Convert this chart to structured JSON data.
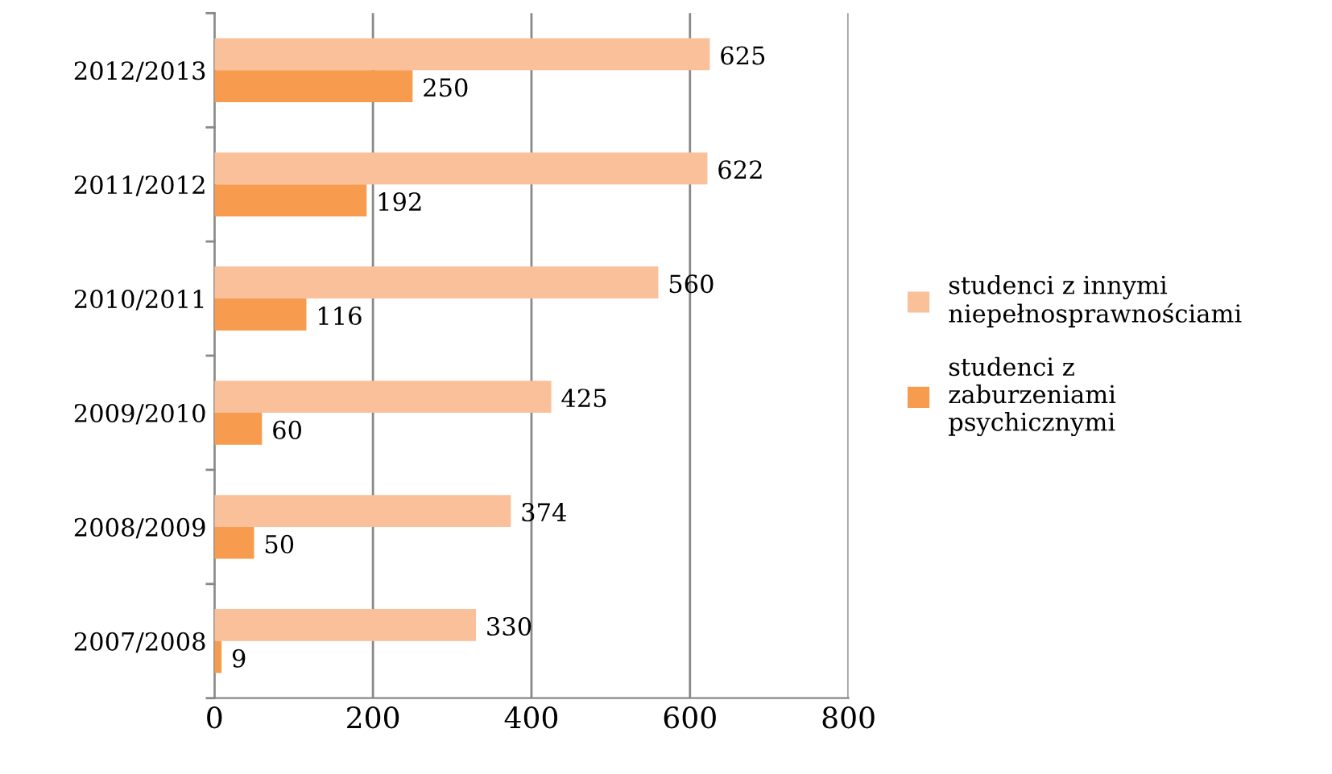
{
  "chart_data": {
    "type": "bar",
    "orientation": "horizontal",
    "categories": [
      "2012/2013",
      "2011/2012",
      "2010/2011",
      "2009/2010",
      "2008/2009",
      "2007/2008"
    ],
    "series": [
      {
        "name": "studenci z innymi niepełnosprawnościami",
        "color": "#fac09a",
        "values": [
          625,
          622,
          560,
          425,
          374,
          330
        ]
      },
      {
        "name": "studenci z zaburzeniami psychicznymi",
        "color": "#f79c4f",
        "values": [
          250,
          192,
          116,
          60,
          50,
          9
        ]
      }
    ],
    "xlim": [
      0,
      800
    ],
    "xticks": [
      0,
      200,
      400,
      600,
      800
    ],
    "grid": "x",
    "legend": "right",
    "data_labels": true
  }
}
